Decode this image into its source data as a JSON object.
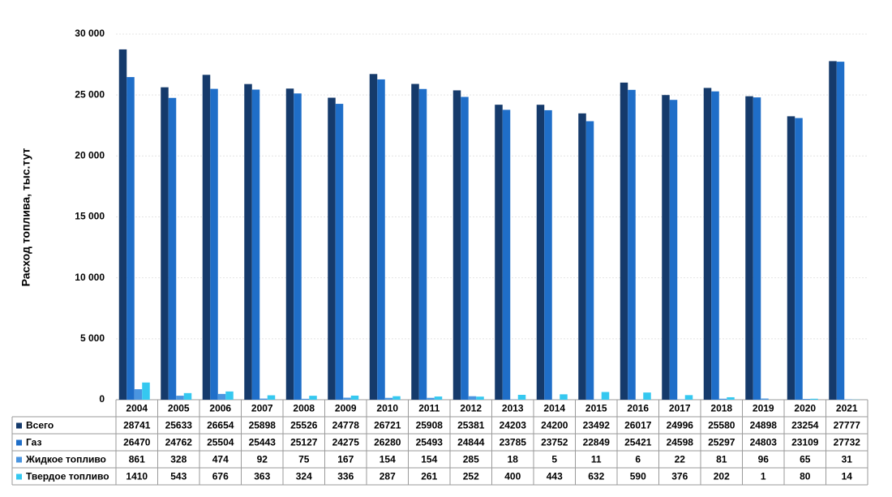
{
  "chart_data": {
    "type": "bar",
    "y_label": "Расход топлива, тыс.тут",
    "categories": [
      "2004",
      "2005",
      "2006",
      "2007",
      "2008",
      "2009",
      "2010",
      "2011",
      "2012",
      "2013",
      "2014",
      "2015",
      "2016",
      "2017",
      "2018",
      "2019",
      "2020",
      "2021"
    ],
    "series": [
      {
        "name": "Всего",
        "color": "#153a6b",
        "values": [
          28741,
          25633,
          26654,
          25898,
          25526,
          24778,
          26721,
          25908,
          25381,
          24203,
          24200,
          23492,
          26017,
          24996,
          25580,
          24898,
          23254,
          27777
        ]
      },
      {
        "name": "Газ",
        "color": "#1f6ec8",
        "values": [
          26470,
          24762,
          25504,
          25443,
          25127,
          24275,
          26280,
          25493,
          24844,
          23785,
          23752,
          22849,
          25421,
          24598,
          25297,
          24803,
          23109,
          27732
        ]
      },
      {
        "name": "Жидкое топливо",
        "color": "#4a95e0",
        "values": [
          861,
          328,
          474,
          92,
          75,
          167,
          154,
          154,
          285,
          18,
          5,
          11,
          6,
          22,
          81,
          96,
          65,
          31
        ]
      },
      {
        "name": "Твердое топливо",
        "color": "#35c8f0",
        "values": [
          1410,
          543,
          676,
          363,
          324,
          336,
          287,
          261,
          252,
          400,
          443,
          632,
          590,
          376,
          202,
          1,
          80,
          14
        ]
      }
    ],
    "ylim": [
      0,
      30000
    ],
    "yticks": [
      0,
      {
        "value": 5000,
        "label": "5 000"
      },
      {
        "value": 10000,
        "label": "10 000"
      },
      {
        "value": 15000,
        "label": "15 000"
      },
      {
        "value": 20000,
        "label": "20 000"
      },
      {
        "value": 25000,
        "label": "25 000"
      },
      {
        "value": 30000,
        "label": "30 000"
      }
    ],
    "grid": true
  }
}
